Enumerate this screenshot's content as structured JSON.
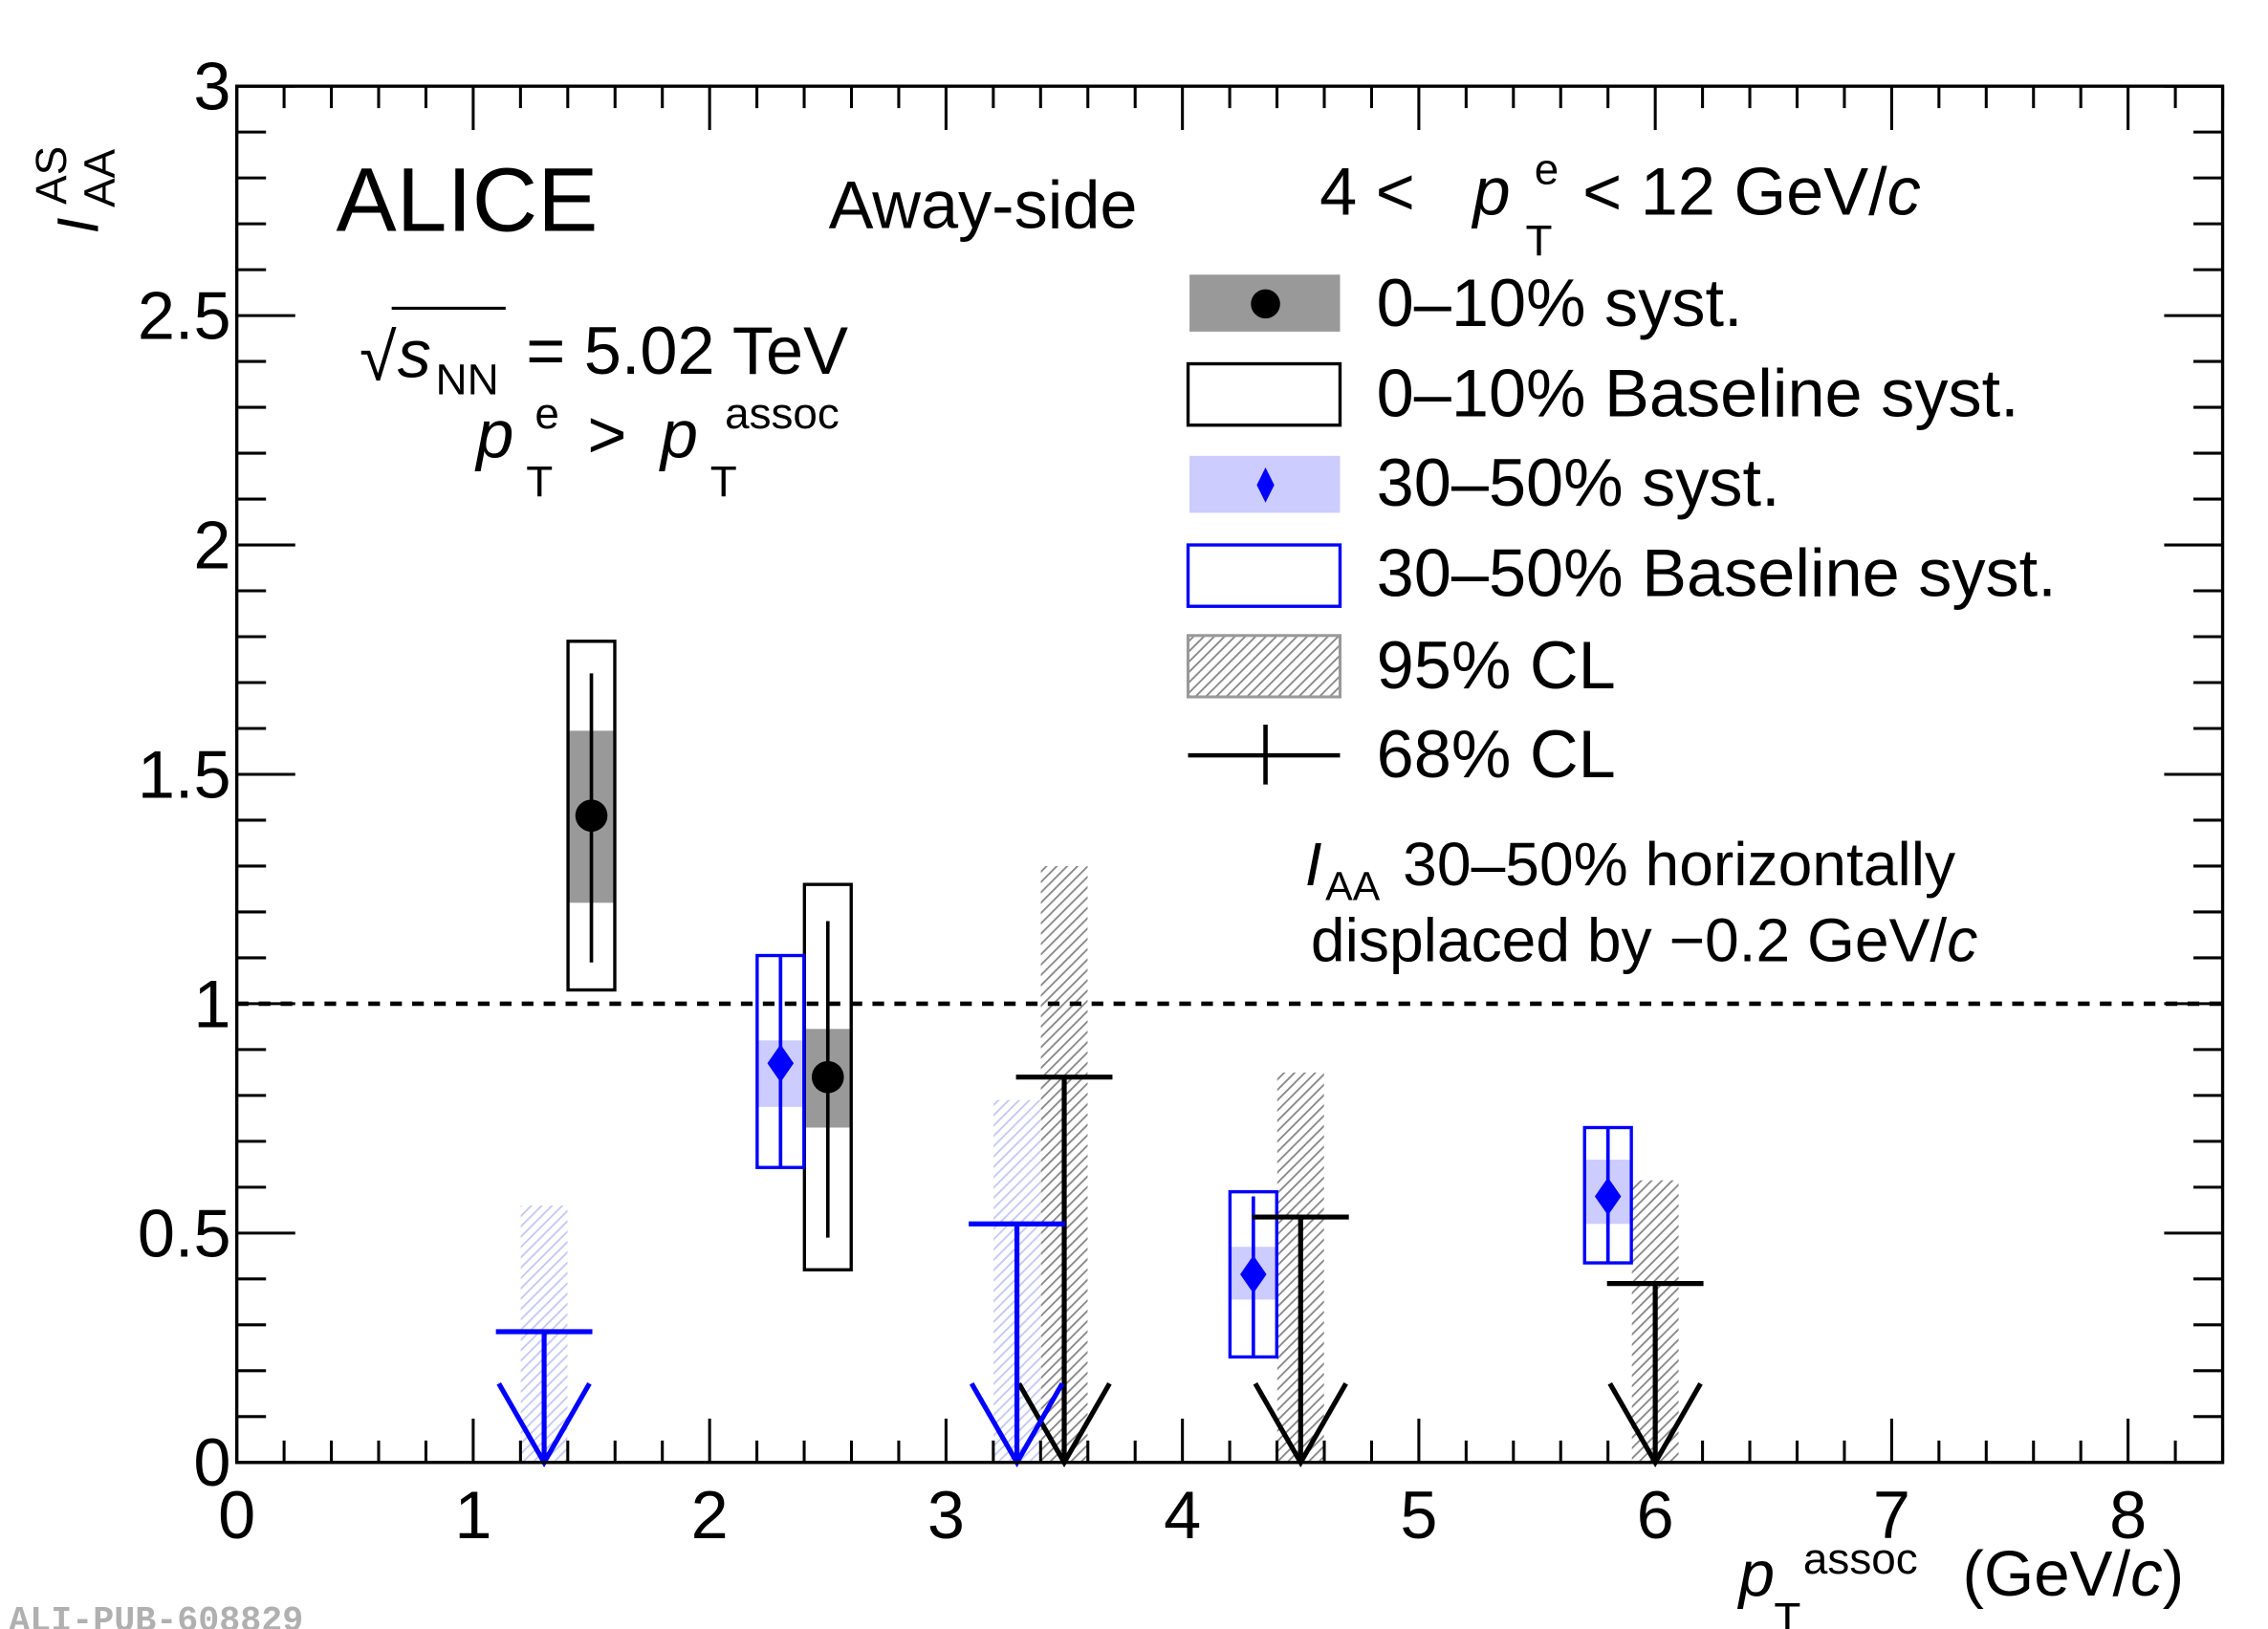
{
  "watermark": "ALI-PUB-608829",
  "chart_data": {
    "type": "scatter",
    "title": "",
    "experiment": "ALICE",
    "annotations": {
      "energy": "= 5.02 TeV",
      "energy_prefix": "√s",
      "energy_sub": "NN",
      "cut_pt": "p",
      "cut_pt_sub": "T",
      "cut_pt_sup": "e",
      "cut_gt": ">",
      "cut_assoc_sup": "assoc",
      "side": "Away-side",
      "trigger_range_low": "4 <",
      "trigger_range_high": "< 12 GeV/",
      "trigger_c": "c",
      "note_line1": "30–50% horizontally",
      "note_line1_prefix": "I",
      "note_line1_sub": "AA",
      "note_line2": "displaced by −0.2 GeV/",
      "note_c": "c"
    },
    "xlabel": "p",
    "xlabel_sub": "T",
    "xlabel_sup": "assoc",
    "xlabel_unit": "(GeV/",
    "xlabel_unit_c": "c",
    "xlabel_unit_close": ")",
    "ylabel": "I",
    "ylabel_sub": "AA",
    "ylabel_sup": "AS",
    "xlim": [
      0,
      8.4
    ],
    "ylim": [
      0,
      3
    ],
    "xticks": [
      0,
      1,
      2,
      3,
      4,
      5,
      6,
      7,
      8
    ],
    "xtick_labels": [
      "0",
      "1",
      "2",
      "3",
      "4",
      "5",
      "6",
      "7",
      "8"
    ],
    "yticks": [
      0,
      0.5,
      1,
      1.5,
      2,
      2.5,
      3
    ],
    "ytick_labels": [
      "0",
      "0.5",
      "1",
      "1.5",
      "2",
      "2.5",
      "3"
    ],
    "reference_line": 1,
    "legend": [
      {
        "label": "0–10% syst.",
        "kind": "central-syst"
      },
      {
        "label": "0–10% Baseline syst.",
        "kind": "central-baseline"
      },
      {
        "label": "30–50% syst.",
        "kind": "semi-syst"
      },
      {
        "label": "30–50% Baseline syst.",
        "kind": "semi-baseline"
      },
      {
        "label": "95% CL",
        "kind": "cl95"
      },
      {
        "label": "68% CL",
        "kind": "cl68"
      }
    ],
    "legend_position": "top-right",
    "colors": {
      "central": "#000000",
      "central_syst": "#999999",
      "semi": "#0000ff",
      "semi_syst": "#ccccff",
      "cl95_central": "#888888",
      "cl95_semi": "#aab0ee"
    },
    "series": [
      {
        "name": "0–10%",
        "points": [
          {
            "x": 1.5,
            "y": 1.41,
            "stat": [
              1.09,
              1.72
            ],
            "syst": [
              1.22,
              1.595
            ],
            "baseline": [
              1.03,
              1.79
            ]
          },
          {
            "x": 2.5,
            "y": 0.84,
            "stat": [
              0.49,
              1.18
            ],
            "syst": [
              0.73,
              0.945
            ],
            "baseline": [
              0.42,
              1.26
            ]
          }
        ],
        "upper_limits": [
          {
            "x": 3.5,
            "cl68": 0.84,
            "cl95": 1.3
          },
          {
            "x": 4.5,
            "cl68": 0.535,
            "cl95": 0.85
          },
          {
            "x": 6.0,
            "cl68": 0.39,
            "cl95": 0.615
          }
        ]
      },
      {
        "name": "30–50%",
        "points": [
          {
            "x": 2.3,
            "y": 0.87,
            "stat": [
              0.643,
              1.105
            ],
            "syst": [
              0.775,
              0.92
            ],
            "baseline": [
              0.643,
              1.105
            ]
          },
          {
            "x": 4.3,
            "y": 0.41,
            "stat": [
              0.23,
              0.58
            ],
            "syst": [
              0.355,
              0.47
            ],
            "baseline": [
              0.23,
              0.59
            ]
          },
          {
            "x": 5.8,
            "y": 0.58,
            "stat": [
              0.435,
              0.73
            ],
            "syst": [
              0.52,
              0.66
            ],
            "baseline": [
              0.435,
              0.73
            ]
          }
        ],
        "upper_limits": [
          {
            "x": 1.3,
            "cl68": 0.285,
            "cl95": 0.56
          },
          {
            "x": 3.3,
            "cl68": 0.52,
            "cl95": 0.79
          }
        ]
      }
    ]
  }
}
